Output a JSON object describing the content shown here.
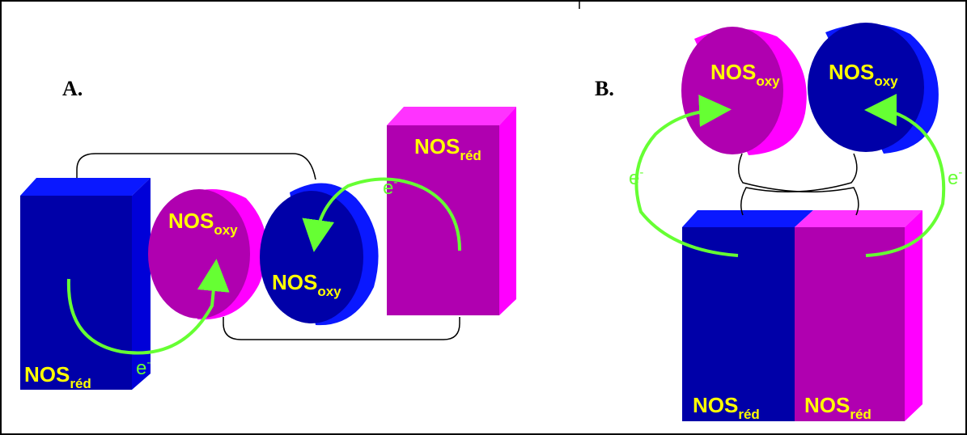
{
  "colors": {
    "blue_front": "#0000a8",
    "blue_side": "#0000d8",
    "blue_top": "#0a18ff",
    "magenta_front": "#b000b0",
    "magenta_side": "#ff00ff",
    "magenta_top": "#ff33ff",
    "label_yellow": "#ffff00",
    "arrow_green": "#66ff33",
    "linker_black": "#000000"
  },
  "panel_a": {
    "label": "A.",
    "blue_reductase": {
      "main": "NOS",
      "sub": "réd"
    },
    "magenta_oxygenase": {
      "main": "NOS",
      "sub": "oxy"
    },
    "blue_oxygenase": {
      "main": "NOS",
      "sub": "oxy"
    },
    "magenta_reductase": {
      "main": "NOS",
      "sub": "réd"
    },
    "electron_bottom": {
      "main": "e",
      "sup": "-"
    },
    "electron_top": {
      "main": "e",
      "sup": "-"
    }
  },
  "panel_b": {
    "label": "B.",
    "magenta_oxygenase": {
      "main": "NOS",
      "sub": "oxy"
    },
    "blue_oxygenase": {
      "main": "NOS",
      "sub": "oxy"
    },
    "blue_reductase": {
      "main": "NOS",
      "sub": "réd"
    },
    "magenta_reductase": {
      "main": "NOS",
      "sub": "réd"
    },
    "electron_left": {
      "main": "e",
      "sup": "-"
    },
    "electron_right": {
      "main": "e",
      "sup": "-"
    }
  }
}
